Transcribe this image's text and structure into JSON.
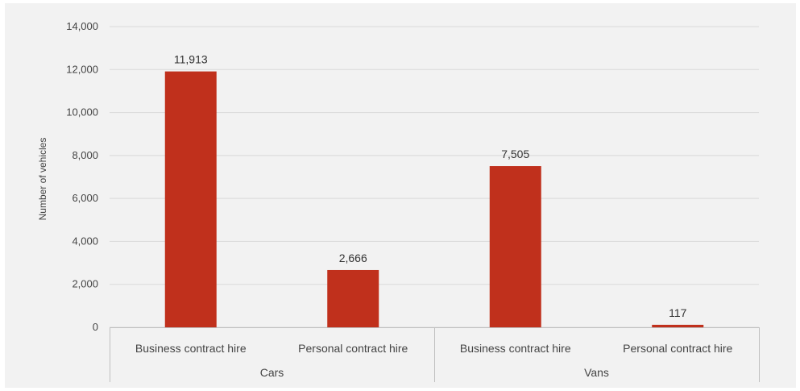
{
  "chart_data": {
    "type": "bar",
    "title": "",
    "ylabel": "Number of vehicles",
    "xlabel": "",
    "ylim": [
      0,
      14000
    ],
    "yticks": [
      0,
      2000,
      4000,
      6000,
      8000,
      10000,
      12000,
      14000
    ],
    "ytick_labels": [
      "0",
      "2,000",
      "4,000",
      "6,000",
      "8,000",
      "10,000",
      "12,000",
      "14,000"
    ],
    "grid": true,
    "legend": "none",
    "bar_color": "#c0301c",
    "groups": [
      {
        "label": "Cars",
        "categories": [
          "Business contract hire",
          "Personal contract hire"
        ],
        "values": [
          11913,
          2666
        ],
        "value_labels": [
          "11,913",
          "2,666"
        ]
      },
      {
        "label": "Vans",
        "categories": [
          "Business contract hire",
          "Personal contract hire"
        ],
        "values": [
          7505,
          117
        ],
        "value_labels": [
          "7,505",
          "117"
        ]
      }
    ]
  }
}
